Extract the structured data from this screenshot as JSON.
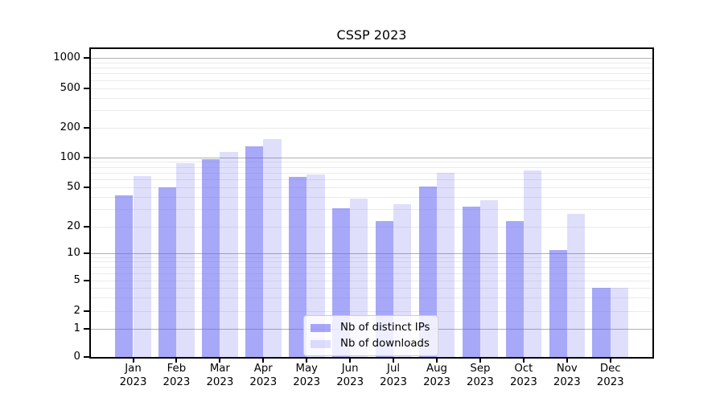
{
  "title": "CSSP 2023",
  "chart_data": {
    "type": "bar",
    "title": "CSSP 2023",
    "categories": [
      "Jan 2023",
      "Feb 2023",
      "Mar 2023",
      "Apr 2023",
      "May 2023",
      "Jun 2023",
      "Jul 2023",
      "Aug 2023",
      "Sep 2023",
      "Oct 2023",
      "Nov 2023",
      "Dec 2023"
    ],
    "series": [
      {
        "name": "Nb of distinct IPs",
        "color": "#a8a8f8",
        "values": [
          42,
          50,
          97,
          130,
          64,
          31,
          23,
          51,
          32,
          23,
          11,
          4
        ]
      },
      {
        "name": "Nb of downloads",
        "color": "#dcdcfa",
        "values": [
          66,
          88,
          114,
          155,
          68,
          39,
          34,
          71,
          37,
          75,
          27,
          4
        ]
      }
    ],
    "xlabel": "",
    "ylabel": "",
    "yscale": "symlog",
    "yticks": [
      0,
      1,
      2,
      5,
      10,
      20,
      50,
      100,
      200,
      500,
      1000
    ],
    "ylim": [
      0,
      1250
    ],
    "grid": "horizontal major and minor gridlines",
    "legend_position": "inside axes, lower center"
  },
  "colors": {
    "bar_base": "#6161f2",
    "bar_ips_alpha": 0.55,
    "bar_downloads_alpha": 0.2,
    "gridline_major": "#b0b0b0",
    "gridline_minor": "#ebebeb",
    "axis": "#000000",
    "background": "#ffffff"
  }
}
